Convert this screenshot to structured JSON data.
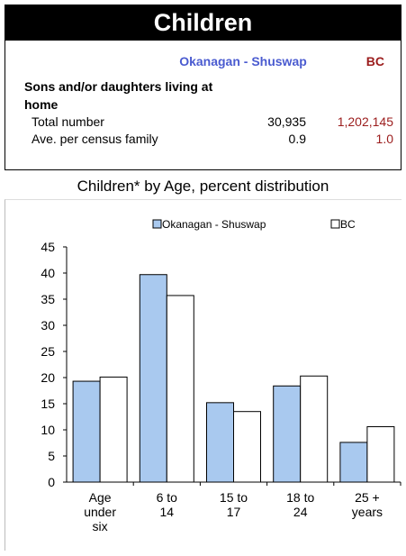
{
  "header": {
    "title": "Children"
  },
  "table": {
    "col_region": "Okanagan - Shuswap",
    "col_province": "BC",
    "section_label": "Sons and/or daughters living at home",
    "rows": [
      {
        "label": "Total number",
        "region": "30,935",
        "province": "1,202,145"
      },
      {
        "label": "Ave. per census family",
        "region": "0.9",
        "province": "1.0"
      }
    ]
  },
  "colors": {
    "region": "#a9c9ef",
    "province": "#ffffff",
    "province_text": "#9b1c1c",
    "region_text": "#4a5bd0"
  },
  "chart_data": {
    "type": "bar",
    "title": "Children* by Age, percent distribution",
    "categories": [
      [
        "Age",
        "under",
        "six"
      ],
      [
        "6 to",
        "14"
      ],
      [
        "15 to",
        "17"
      ],
      [
        "18 to",
        "24"
      ],
      [
        "25 +",
        "years"
      ]
    ],
    "series": [
      {
        "name": "Okanagan - Shuswap",
        "values": [
          19.3,
          39.7,
          15.2,
          18.4,
          7.6
        ]
      },
      {
        "name": "BC",
        "values": [
          20.1,
          35.7,
          13.5,
          20.3,
          10.6
        ]
      }
    ],
    "ylim": [
      0,
      45
    ],
    "yticks": [
      0,
      5,
      10,
      15,
      20,
      25,
      30,
      35,
      40,
      45
    ],
    "legend": "top"
  }
}
